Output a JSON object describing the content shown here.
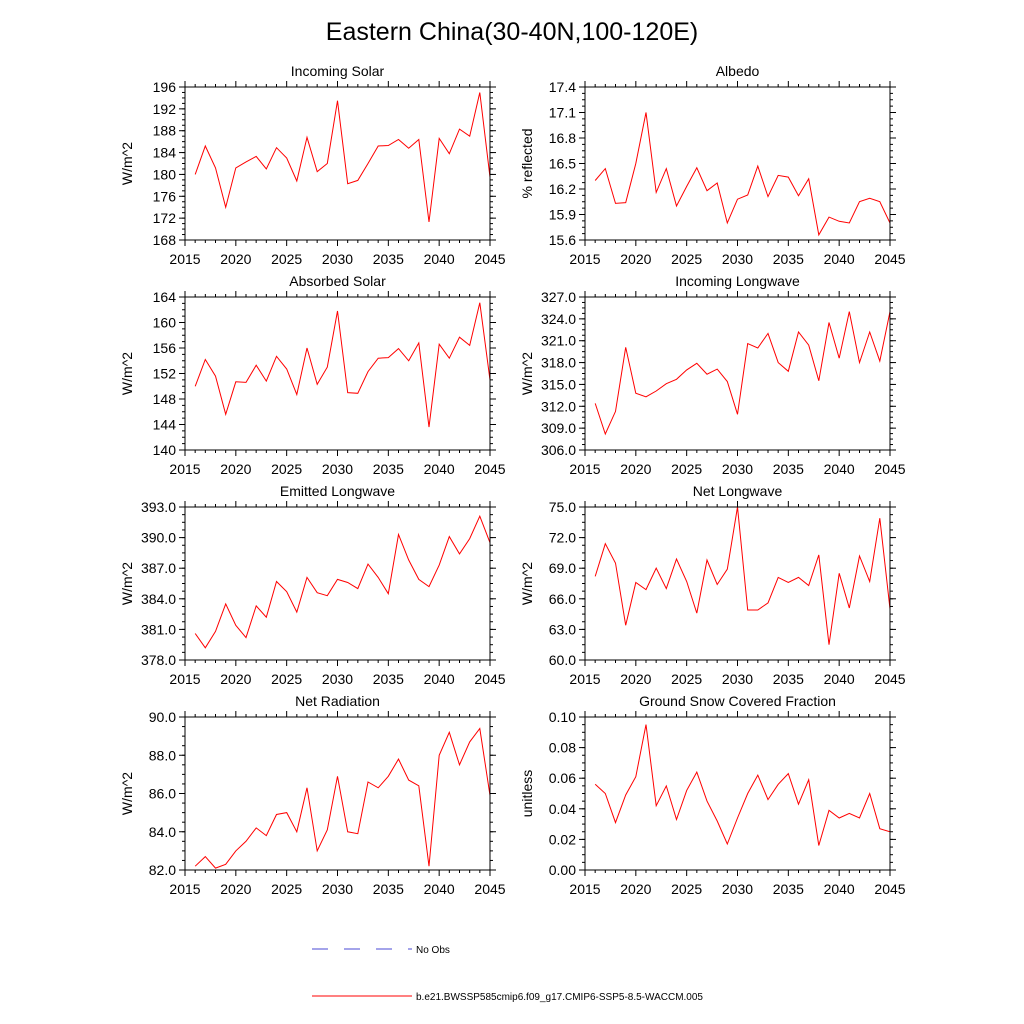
{
  "title": "Eastern China(30-40N,100-120E)",
  "colors": {
    "model": "#ff0000",
    "obs": "#4a4ad6",
    "axis": "#000000"
  },
  "legend": {
    "obs_label": "No Obs",
    "model_label": "b.e21.BWSSP585cmip6.f09_g17.CMIP6-SSP5-8.5-WACCM.005"
  },
  "chart_data": [
    {
      "type": "line",
      "title": "Incoming Solar",
      "ylabel": "W/m^2",
      "xlabel": "",
      "xlim": [
        2015,
        2045
      ],
      "ylim": [
        168,
        196
      ],
      "tick_decimals": 0,
      "xticks": [
        2015,
        2020,
        2025,
        2030,
        2035,
        2040,
        2045
      ],
      "yticks": [
        168,
        172,
        176,
        180,
        184,
        188,
        192,
        196
      ],
      "x": [
        2016,
        2017,
        2018,
        2019,
        2020,
        2021,
        2022,
        2023,
        2024,
        2025,
        2026,
        2027,
        2028,
        2029,
        2030,
        2031,
        2032,
        2033,
        2034,
        2035,
        2036,
        2037,
        2038,
        2039,
        2040,
        2041,
        2042,
        2043,
        2044,
        2045
      ],
      "series": [
        {
          "name": "b.e21.BWSSP585cmip6.f09_g17.CMIP6-SSP5-8.5-WACCM.005",
          "values": [
            180.0,
            185.2,
            181.2,
            174.0,
            181.2,
            182.3,
            183.3,
            181.0,
            184.9,
            183.0,
            178.8,
            186.8,
            180.5,
            182.0,
            193.5,
            178.3,
            178.9,
            182.0,
            185.2,
            185.3,
            186.4,
            184.8,
            186.4,
            171.3,
            186.6,
            183.8,
            188.3,
            187.0,
            195.0,
            179.5
          ]
        }
      ]
    },
    {
      "type": "line",
      "title": "Albedo",
      "ylabel": "% reflected",
      "xlabel": "",
      "xlim": [
        2015,
        2045
      ],
      "ylim": [
        15.6,
        17.4
      ],
      "tick_decimals": 1,
      "xticks": [
        2015,
        2020,
        2025,
        2030,
        2035,
        2040,
        2045
      ],
      "yticks": [
        15.6,
        15.9,
        16.2,
        16.5,
        16.8,
        17.1,
        17.4
      ],
      "x": [
        2016,
        2017,
        2018,
        2019,
        2020,
        2021,
        2022,
        2023,
        2024,
        2025,
        2026,
        2027,
        2028,
        2029,
        2030,
        2031,
        2032,
        2033,
        2034,
        2035,
        2036,
        2037,
        2038,
        2039,
        2040,
        2041,
        2042,
        2043,
        2044,
        2045
      ],
      "series": [
        {
          "name": "b.e21.BWSSP585cmip6.f09_g17.CMIP6-SSP5-8.5-WACCM.005",
          "values": [
            16.3,
            16.44,
            16.03,
            16.04,
            16.5,
            17.1,
            16.16,
            16.44,
            16.0,
            16.23,
            16.45,
            16.18,
            16.27,
            15.8,
            16.08,
            16.13,
            16.47,
            16.11,
            16.36,
            16.34,
            16.12,
            16.32,
            15.66,
            15.87,
            15.82,
            15.8,
            16.05,
            16.09,
            16.05,
            15.8
          ]
        }
      ]
    },
    {
      "type": "line",
      "title": "Absorbed Solar",
      "ylabel": "W/m^2",
      "xlabel": "",
      "xlim": [
        2015,
        2045
      ],
      "ylim": [
        140,
        164
      ],
      "tick_decimals": 0,
      "xticks": [
        2015,
        2020,
        2025,
        2030,
        2035,
        2040,
        2045
      ],
      "yticks": [
        140,
        144,
        148,
        152,
        156,
        160,
        164
      ],
      "x": [
        2016,
        2017,
        2018,
        2019,
        2020,
        2021,
        2022,
        2023,
        2024,
        2025,
        2026,
        2027,
        2028,
        2029,
        2030,
        2031,
        2032,
        2033,
        2034,
        2035,
        2036,
        2037,
        2038,
        2039,
        2040,
        2041,
        2042,
        2043,
        2044,
        2045
      ],
      "series": [
        {
          "name": "b.e21.BWSSP585cmip6.f09_g17.CMIP6-SSP5-8.5-WACCM.005",
          "values": [
            150.0,
            154.2,
            151.6,
            145.6,
            150.7,
            150.6,
            153.3,
            150.8,
            154.7,
            152.7,
            148.7,
            156.0,
            150.3,
            153.0,
            161.8,
            149.0,
            148.9,
            152.3,
            154.4,
            154.5,
            155.9,
            154.0,
            156.8,
            143.6,
            156.6,
            154.4,
            157.7,
            156.4,
            163.1,
            151.0
          ]
        }
      ]
    },
    {
      "type": "line",
      "title": "Incoming Longwave",
      "ylabel": "W/m^2",
      "xlabel": "",
      "xlim": [
        2015,
        2045
      ],
      "ylim": [
        306,
        327
      ],
      "tick_decimals": 1,
      "xticks": [
        2015,
        2020,
        2025,
        2030,
        2035,
        2040,
        2045
      ],
      "yticks": [
        306,
        309,
        312,
        315,
        318,
        321,
        324,
        327
      ],
      "x": [
        2016,
        2017,
        2018,
        2019,
        2020,
        2021,
        2022,
        2023,
        2024,
        2025,
        2026,
        2027,
        2028,
        2029,
        2030,
        2031,
        2032,
        2033,
        2034,
        2035,
        2036,
        2037,
        2038,
        2039,
        2040,
        2041,
        2042,
        2043,
        2044,
        2045
      ],
      "series": [
        {
          "name": "b.e21.BWSSP585cmip6.f09_g17.CMIP6-SSP5-8.5-WACCM.005",
          "values": [
            312.4,
            308.2,
            311.3,
            320.1,
            313.8,
            313.3,
            314.1,
            315.1,
            315.7,
            317.0,
            317.9,
            316.4,
            317.1,
            315.4,
            310.9,
            320.6,
            320.0,
            322.0,
            318.0,
            316.8,
            322.2,
            320.4,
            315.5,
            323.5,
            318.6,
            325.0,
            318.0,
            322.2,
            318.2,
            325.0
          ]
        }
      ]
    },
    {
      "type": "line",
      "title": "Emitted Longwave",
      "ylabel": "W/m^2",
      "xlabel": "",
      "xlim": [
        2015,
        2045
      ],
      "ylim": [
        378,
        393
      ],
      "tick_decimals": 1,
      "xticks": [
        2015,
        2020,
        2025,
        2030,
        2035,
        2040,
        2045
      ],
      "yticks": [
        378,
        381,
        384,
        387,
        390,
        393
      ],
      "x": [
        2016,
        2017,
        2018,
        2019,
        2020,
        2021,
        2022,
        2023,
        2024,
        2025,
        2026,
        2027,
        2028,
        2029,
        2030,
        2031,
        2032,
        2033,
        2034,
        2035,
        2036,
        2037,
        2038,
        2039,
        2040,
        2041,
        2042,
        2043,
        2044,
        2045
      ],
      "series": [
        {
          "name": "b.e21.BWSSP585cmip6.f09_g17.CMIP6-SSP5-8.5-WACCM.005",
          "values": [
            380.6,
            379.2,
            380.8,
            383.5,
            381.4,
            380.2,
            383.3,
            382.2,
            385.7,
            384.7,
            382.7,
            386.1,
            384.6,
            384.3,
            385.9,
            385.6,
            385.0,
            387.4,
            386.1,
            384.5,
            390.3,
            387.8,
            385.9,
            385.2,
            387.3,
            390.1,
            388.4,
            389.9,
            392.1,
            389.5
          ]
        }
      ]
    },
    {
      "type": "line",
      "title": "Net Longwave",
      "ylabel": "W/m^2",
      "xlabel": "",
      "xlim": [
        2015,
        2045
      ],
      "ylim": [
        60,
        75
      ],
      "tick_decimals": 1,
      "xticks": [
        2015,
        2020,
        2025,
        2030,
        2035,
        2040,
        2045
      ],
      "yticks": [
        60,
        63,
        66,
        69,
        72,
        75
      ],
      "x": [
        2016,
        2017,
        2018,
        2019,
        2020,
        2021,
        2022,
        2023,
        2024,
        2025,
        2026,
        2027,
        2028,
        2029,
        2030,
        2031,
        2032,
        2033,
        2034,
        2035,
        2036,
        2037,
        2038,
        2039,
        2040,
        2041,
        2042,
        2043,
        2044,
        2045
      ],
      "series": [
        {
          "name": "b.e21.BWSSP585cmip6.f09_g17.CMIP6-SSP5-8.5-WACCM.005",
          "values": [
            68.2,
            71.4,
            69.5,
            63.4,
            67.6,
            66.9,
            69.0,
            67.0,
            69.9,
            67.7,
            64.6,
            69.8,
            67.4,
            68.9,
            75.0,
            64.9,
            64.9,
            65.6,
            68.1,
            67.6,
            68.1,
            67.3,
            70.3,
            61.5,
            68.5,
            65.1,
            70.2,
            67.7,
            73.9,
            65.0
          ]
        }
      ]
    },
    {
      "type": "line",
      "title": "Net Radiation",
      "ylabel": "W/m^2",
      "xlabel": "",
      "xlim": [
        2015,
        2045
      ],
      "ylim": [
        82,
        90
      ],
      "tick_decimals": 1,
      "xticks": [
        2015,
        2020,
        2025,
        2030,
        2035,
        2040,
        2045
      ],
      "yticks": [
        82,
        84,
        86,
        88,
        90
      ],
      "x": [
        2016,
        2017,
        2018,
        2019,
        2020,
        2021,
        2022,
        2023,
        2024,
        2025,
        2026,
        2027,
        2028,
        2029,
        2030,
        2031,
        2032,
        2033,
        2034,
        2035,
        2036,
        2037,
        2038,
        2039,
        2040,
        2041,
        2042,
        2043,
        2044,
        2045
      ],
      "series": [
        {
          "name": "b.e21.BWSSP585cmip6.f09_g17.CMIP6-SSP5-8.5-WACCM.005",
          "values": [
            82.2,
            82.7,
            82.1,
            82.3,
            83.0,
            83.5,
            84.2,
            83.8,
            84.9,
            85.0,
            84.0,
            86.3,
            83.0,
            84.1,
            86.9,
            84.0,
            83.9,
            86.6,
            86.3,
            86.9,
            87.8,
            86.7,
            86.4,
            82.2,
            88.0,
            89.2,
            87.5,
            88.7,
            89.4,
            85.9
          ]
        }
      ]
    },
    {
      "type": "line",
      "title": "Ground Snow Covered Fraction",
      "ylabel": "unitless",
      "xlabel": "",
      "xlim": [
        2015,
        2045
      ],
      "ylim": [
        0,
        0.1
      ],
      "tick_decimals": 2,
      "xticks": [
        2015,
        2020,
        2025,
        2030,
        2035,
        2040,
        2045
      ],
      "yticks": [
        0.0,
        0.02,
        0.04,
        0.06,
        0.08,
        0.1
      ],
      "x": [
        2016,
        2017,
        2018,
        2019,
        2020,
        2021,
        2022,
        2023,
        2024,
        2025,
        2026,
        2027,
        2028,
        2029,
        2030,
        2031,
        2032,
        2033,
        2034,
        2035,
        2036,
        2037,
        2038,
        2039,
        2040,
        2041,
        2042,
        2043,
        2044,
        2045
      ],
      "series": [
        {
          "name": "b.e21.BWSSP585cmip6.f09_g17.CMIP6-SSP5-8.5-WACCM.005",
          "values": [
            0.056,
            0.05,
            0.031,
            0.049,
            0.061,
            0.095,
            0.042,
            0.055,
            0.033,
            0.052,
            0.064,
            0.045,
            0.032,
            0.017,
            0.034,
            0.05,
            0.062,
            0.046,
            0.056,
            0.063,
            0.043,
            0.059,
            0.016,
            0.039,
            0.034,
            0.037,
            0.034,
            0.05,
            0.027,
            0.025
          ]
        }
      ]
    }
  ]
}
